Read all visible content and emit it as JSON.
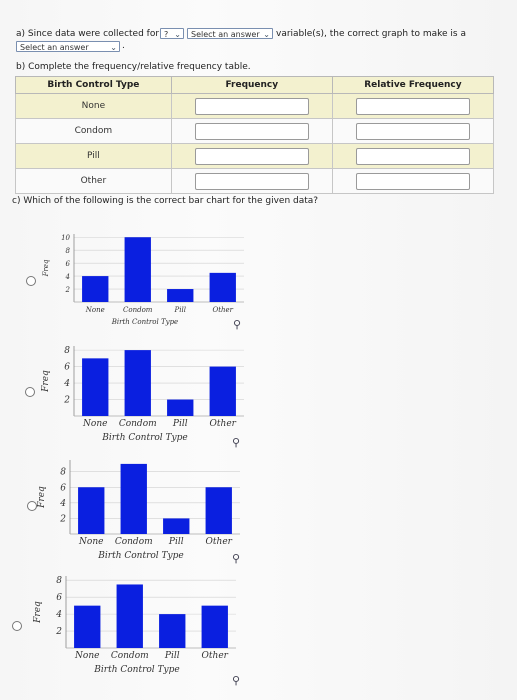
{
  "part_a": {
    "prefix": "a) Since data were collected for",
    "select1_value": "?",
    "select2_value": "Select an answer",
    "suffix": "variable(s), the correct graph to make is a",
    "select3_value": "Select an answer",
    "end": "."
  },
  "part_b": {
    "prompt": "b) Complete the frequency/relative frequency table.",
    "headers": [
      "Birth Control Type",
      "Frequency",
      "Relative Frequency"
    ],
    "rows": [
      "None",
      "Condom",
      "Pill",
      "Other"
    ]
  },
  "part_c": {
    "prompt": "c) Which of the following is the correct bar chart for the given data?"
  },
  "icons": {
    "radio": "radio-button",
    "zoom": "magnifier-icon",
    "chevron": "chevron-down-icon"
  },
  "colors": {
    "bar": "#0a1fe0",
    "table_header": "#f3f1cf"
  },
  "chart_data": [
    {
      "type": "bar",
      "categories": [
        "None",
        "Condom",
        "Pill",
        "Other"
      ],
      "values": [
        4,
        10,
        2,
        4.5
      ],
      "xlabel": "Birth Control Type",
      "ylabel": "Freq",
      "yticks": [
        2,
        4,
        6,
        8,
        10
      ],
      "ylim": [
        0,
        10.5
      ]
    },
    {
      "type": "bar",
      "categories": [
        "None",
        "Condom",
        "Pill",
        "Other"
      ],
      "values": [
        7,
        8,
        2,
        6
      ],
      "xlabel": "Birth Control Type",
      "ylabel": "Freq",
      "yticks": [
        2,
        4,
        6,
        8
      ],
      "ylim": [
        0,
        8.5
      ]
    },
    {
      "type": "bar",
      "categories": [
        "None",
        "Condom",
        "Pill",
        "Other"
      ],
      "values": [
        6,
        9,
        2,
        6
      ],
      "xlabel": "Birth Control Type",
      "ylabel": "Freq",
      "yticks": [
        2,
        4,
        6,
        8
      ],
      "ylim": [
        0,
        9.5
      ]
    },
    {
      "type": "bar",
      "categories": [
        "None",
        "Condom",
        "Pill",
        "Other"
      ],
      "values": [
        5,
        7.5,
        4,
        5
      ],
      "xlabel": "Birth Control Type",
      "ylabel": "Freq",
      "yticks": [
        2,
        4,
        6,
        8
      ],
      "ylim": [
        0,
        8.5
      ]
    }
  ]
}
